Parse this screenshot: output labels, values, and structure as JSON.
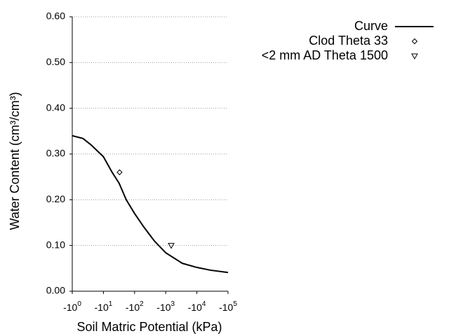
{
  "chart_data": {
    "type": "line",
    "x_label": "Soil Matric Potential (kPa)",
    "y_label": "Water Content (cm³/cm³)",
    "xlog": true,
    "xlim": [
      -1,
      -100000
    ],
    "xticks": [
      {
        "value": -1,
        "label": "-10",
        "sup": "0"
      },
      {
        "value": -10,
        "label": "-10",
        "sup": "1"
      },
      {
        "value": -100,
        "label": "-10",
        "sup": "2"
      },
      {
        "value": -1000,
        "label": "-10",
        "sup": "3"
      },
      {
        "value": -10000,
        "label": "-10",
        "sup": "4"
      },
      {
        "value": -100000,
        "label": "-10",
        "sup": "5"
      }
    ],
    "ylim": [
      0,
      0.6
    ],
    "yticks": [
      {
        "value": 0,
        "label": "0.00"
      },
      {
        "value": 0.1,
        "label": "0.10"
      },
      {
        "value": 0.2,
        "label": "0.20"
      },
      {
        "value": 0.3,
        "label": "0.30"
      },
      {
        "value": 0.4,
        "label": "0.40"
      },
      {
        "value": 0.5,
        "label": "0.50"
      },
      {
        "value": 0.6,
        "label": "0.60"
      }
    ],
    "grid": true,
    "legend": "top-right",
    "series": [
      {
        "name": "Curve",
        "type": "line",
        "color": "#000000",
        "x": [
          -1,
          -2.2,
          -4,
          -10,
          -19,
          -32,
          -54,
          -100,
          -200,
          -430,
          -1000,
          -3400,
          -10000,
          -27000,
          -100000
        ],
        "values": [
          0.34,
          0.334,
          0.32,
          0.294,
          0.26,
          0.236,
          0.2,
          0.17,
          0.14,
          0.11,
          0.084,
          0.061,
          0.052,
          0.046,
          0.041
        ]
      },
      {
        "name": "Clod Theta 33",
        "type": "scatter",
        "marker": "diamond",
        "color": "#000000",
        "x": [
          -33
        ],
        "values": [
          0.26
        ]
      },
      {
        "name": "<2 mm AD Theta 1500",
        "type": "scatter",
        "marker": "triangle-down",
        "color": "#000000",
        "x": [
          -1500
        ],
        "values": [
          0.1
        ]
      }
    ]
  }
}
